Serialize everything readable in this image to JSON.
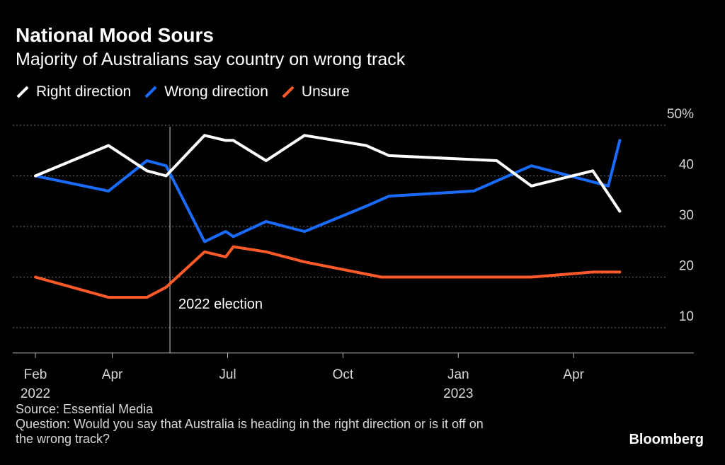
{
  "chart_data": {
    "type": "line",
    "title": "National Mood Sours",
    "subtitle": "Majority of Australians say country on wrong track",
    "ylim": [
      5,
      50
    ],
    "y_ticks": [
      {
        "value": 50,
        "label": "50%"
      },
      {
        "value": 40,
        "label": "40"
      },
      {
        "value": 30,
        "label": "30"
      },
      {
        "value": 20,
        "label": "20"
      },
      {
        "value": 10,
        "label": "10"
      }
    ],
    "x_ticks": [
      {
        "t": 0.0,
        "label": "Feb",
        "year": "2022"
      },
      {
        "t": 2.0,
        "label": "Apr",
        "year": ""
      },
      {
        "t": 5.0,
        "label": "Jul",
        "year": ""
      },
      {
        "t": 8.0,
        "label": "Oct",
        "year": ""
      },
      {
        "t": 11.0,
        "label": "Jan",
        "year": "2023"
      },
      {
        "t": 14.0,
        "label": "Apr",
        "year": ""
      }
    ],
    "annotation": {
      "t": 3.5,
      "label": "2022 election"
    },
    "series": [
      {
        "name": "Right direction",
        "color": "#ffffff",
        "points": [
          [
            0,
            40
          ],
          [
            1.9,
            46
          ],
          [
            2.9,
            41
          ],
          [
            3.4,
            40
          ],
          [
            4.4,
            48
          ],
          [
            4.95,
            47
          ],
          [
            5.15,
            47
          ],
          [
            6.0,
            43
          ],
          [
            7.0,
            48
          ],
          [
            8.6,
            46
          ],
          [
            9.2,
            44
          ],
          [
            12.0,
            43
          ],
          [
            12.9,
            38
          ],
          [
            14.5,
            41
          ],
          [
            15.2,
            33
          ]
        ]
      },
      {
        "name": "Wrong direction",
        "color": "#1a6cff",
        "points": [
          [
            0,
            40
          ],
          [
            1.9,
            37
          ],
          [
            2.9,
            43
          ],
          [
            3.4,
            42
          ],
          [
            4.4,
            27
          ],
          [
            4.95,
            29
          ],
          [
            5.15,
            28
          ],
          [
            6.0,
            31
          ],
          [
            7.0,
            29
          ],
          [
            8.6,
            34
          ],
          [
            9.2,
            36
          ],
          [
            11.4,
            37
          ],
          [
            12.9,
            42
          ],
          [
            14.9,
            38
          ],
          [
            15.2,
            47
          ]
        ]
      },
      {
        "name": "Unsure",
        "color": "#ff5a28",
        "points": [
          [
            0,
            20
          ],
          [
            1.9,
            16
          ],
          [
            2.9,
            16
          ],
          [
            3.4,
            18
          ],
          [
            4.4,
            25
          ],
          [
            4.95,
            24
          ],
          [
            5.15,
            26
          ],
          [
            6.0,
            25
          ],
          [
            7.0,
            23
          ],
          [
            9.0,
            20
          ],
          [
            12.9,
            20
          ],
          [
            14.5,
            21
          ],
          [
            15.2,
            21
          ]
        ]
      }
    ]
  },
  "footer": {
    "source": "Source: Essential Media",
    "question_line1": "Question: Would you say that Australia is heading in the right direction or is it off on",
    "question_line2": "the wrong track?"
  },
  "brand": "Bloomberg"
}
